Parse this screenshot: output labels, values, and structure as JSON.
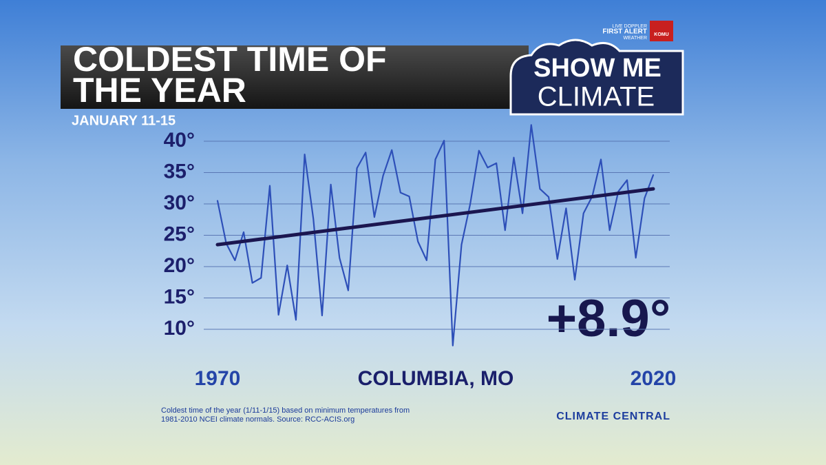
{
  "chart_data": {
    "type": "line",
    "title_lines": [
      "COLDEST TIME OF",
      "THE YEAR"
    ],
    "subtitle": "JANUARY 11-15",
    "location": "COLUMBIA, MO",
    "annotation": "+8.9°",
    "footnote_lines": [
      "Coldest time of the year (1/11-1/15) based on minimum temperatures from",
      "1981-2010 NCEI climate normals. Source: RCC-ACIS.org"
    ],
    "x": [
      1970,
      1971,
      1972,
      1973,
      1974,
      1975,
      1976,
      1977,
      1978,
      1979,
      1980,
      1981,
      1982,
      1983,
      1984,
      1985,
      1986,
      1987,
      1988,
      1989,
      1990,
      1991,
      1992,
      1993,
      1994,
      1995,
      1996,
      1997,
      1998,
      1999,
      2000,
      2001,
      2002,
      2003,
      2004,
      2005,
      2006,
      2007,
      2008,
      2009,
      2010,
      2011,
      2012,
      2013,
      2014,
      2015,
      2016,
      2017,
      2018,
      2019,
      2020
    ],
    "series": [
      {
        "color": "#2d4fb8",
        "values": [
          30.5,
          23.7,
          21,
          25.5,
          17.4,
          18.2,
          32.9,
          12.3,
          20.2,
          11.5,
          37.9,
          27.6,
          12.2,
          33.1,
          21.4,
          16.2,
          35.7,
          38.2,
          27.9,
          34.5,
          38.6,
          31.8,
          31.2,
          24,
          21,
          37.1,
          40.1,
          7.4,
          23.5,
          30,
          38.5,
          35.8,
          36.5,
          25.8,
          37.4,
          28.5,
          42.6,
          32.4,
          31.1,
          21.2,
          29.3,
          17.9,
          28.5,
          31.2,
          37.1,
          25.8,
          32,
          33.8,
          21.4,
          30.9,
          34.6
        ]
      }
    ],
    "trend": {
      "color": "#1b1650",
      "x": [
        1970,
        2020
      ],
      "values": [
        23.5,
        32.4
      ]
    },
    "xlim": [
      1970,
      2020
    ],
    "xticks": [
      1970,
      2020
    ],
    "ylim": [
      5,
      45
    ],
    "yticks": [
      {
        "value": 10,
        "label": "10°"
      },
      {
        "value": 15,
        "label": "15°"
      },
      {
        "value": 20,
        "label": "20°"
      },
      {
        "value": 25,
        "label": "25°"
      },
      {
        "value": 30,
        "label": "30°"
      },
      {
        "value": 35,
        "label": "35°"
      },
      {
        "value": 40,
        "label": "40°"
      }
    ],
    "grid": true
  },
  "branding": {
    "show_me": "SHOW ME",
    "climate": "CLIMATE",
    "first_alert_top": "LIVE DOPPLER",
    "first_alert": "FIRST ALERT",
    "first_alert_bottom": "WEATHER",
    "station": "KOMU",
    "source_logo": "CLIMATE CENTRAL"
  }
}
